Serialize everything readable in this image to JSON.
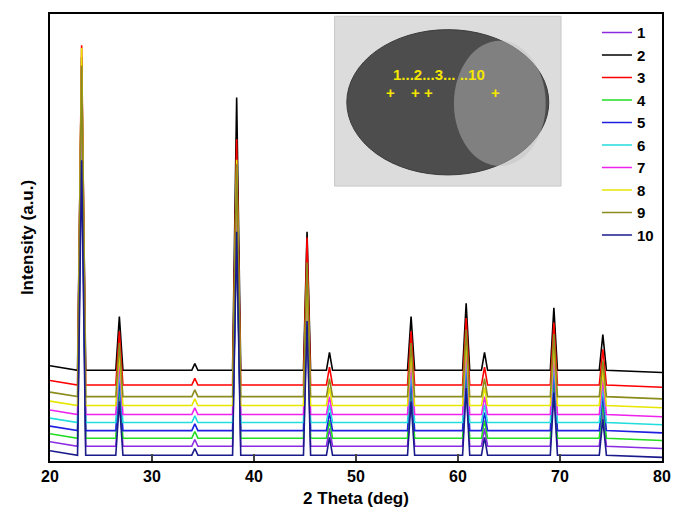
{
  "chart_data": {
    "type": "line",
    "x_label": "2 Theta (deg)",
    "y_label": "Intensity (a.u.)",
    "x": [
      20,
      22.7,
      23.1,
      23.5,
      26.45,
      26.8,
      27.15,
      33.9,
      34.2,
      34.5,
      37.9,
      38.3,
      38.7,
      44.85,
      45.2,
      45.55,
      47.1,
      47.4,
      47.7,
      55.05,
      55.4,
      55.75,
      60.45,
      60.8,
      61.15,
      62.3,
      62.6,
      62.9,
      69.05,
      69.4,
      69.75,
      73.85,
      74.2,
      74.55,
      80
    ],
    "xlim": [
      20,
      80
    ],
    "xticks": [
      20,
      30,
      40,
      50,
      60,
      70,
      80
    ],
    "ylim": [
      0,
      100
    ],
    "tick_labels": "x",
    "grid": false,
    "legend": "top right",
    "annotations": [
      "1...2...3... ..10",
      "+",
      "+",
      "+",
      "+"
    ],
    "series": [
      {
        "name": "1",
        "color": "#8a2be2",
        "values": [
          4.3,
          3.3,
          73.3,
          3.3,
          3.3,
          15.3,
          3.3,
          3.3,
          4.8,
          3.3,
          3.3,
          53.3,
          3.3,
          3.3,
          33.3,
          3.3,
          3.3,
          7.3,
          3.3,
          3.3,
          15.3,
          3.3,
          3.3,
          18.3,
          3.3,
          3.3,
          7.3,
          3.3,
          3.3,
          17.3,
          3.3,
          3.3,
          11.3,
          3.3,
          2.8
        ]
      },
      {
        "name": "2",
        "color": "#000000",
        "values": [
          21.3,
          20.3,
          90.3,
          20.3,
          20.3,
          32.3,
          20.3,
          20.3,
          21.8,
          20.3,
          20.3,
          81.3,
          20.3,
          20.3,
          51.3,
          20.3,
          20.3,
          24.3,
          20.3,
          20.3,
          32.3,
          20.3,
          20.3,
          35.3,
          20.3,
          20.3,
          24.3,
          20.3,
          20.3,
          34.3,
          20.3,
          20.3,
          28.3,
          20.3,
          19.8
        ]
      },
      {
        "name": "3",
        "color": "#ff0000",
        "values": [
          18,
          17,
          93,
          17,
          17,
          29,
          17,
          17,
          18.5,
          17,
          17,
          72,
          17,
          17,
          50,
          17,
          17,
          21,
          17,
          17,
          29,
          17,
          17,
          32,
          17,
          17,
          21,
          17,
          17,
          31,
          17,
          17,
          25,
          17,
          16.5
        ]
      },
      {
        "name": "4",
        "color": "#22dd22",
        "values": [
          6.1,
          5.1,
          77.1,
          5.1,
          5.1,
          17.1,
          5.1,
          5.1,
          6.6,
          5.1,
          5.1,
          53.1,
          5.1,
          5.1,
          35.1,
          5.1,
          5.1,
          9.1,
          5.1,
          5.1,
          17.1,
          5.1,
          5.1,
          20.1,
          5.1,
          5.1,
          9.1,
          5.1,
          5.1,
          19.1,
          5.1,
          5.1,
          13.1,
          5.1,
          4.6
        ]
      },
      {
        "name": "5",
        "color": "#1f1fe0",
        "values": [
          7.8,
          6.8,
          76.8,
          6.8,
          6.8,
          18.8,
          6.8,
          6.8,
          8.3,
          6.8,
          6.8,
          52.8,
          6.8,
          6.8,
          36.8,
          6.8,
          6.8,
          10.8,
          6.8,
          6.8,
          18.8,
          6.8,
          6.8,
          21.8,
          6.8,
          6.8,
          10.8,
          6.8,
          6.8,
          20.8,
          6.8,
          6.8,
          14.8,
          6.8,
          6.3
        ]
      },
      {
        "name": "6",
        "color": "#22dddd",
        "values": [
          9.6,
          8.6,
          80.6,
          8.6,
          8.6,
          20.6,
          8.6,
          8.6,
          10.1,
          8.6,
          8.6,
          56.6,
          8.6,
          8.6,
          38.6,
          8.6,
          8.6,
          12.6,
          8.6,
          8.6,
          20.6,
          8.6,
          8.6,
          23.6,
          8.6,
          8.6,
          12.6,
          8.6,
          8.6,
          22.6,
          8.6,
          8.6,
          16.6,
          8.6,
          8.1
        ]
      },
      {
        "name": "7",
        "color": "#ee22ee",
        "values": [
          11.4,
          10.4,
          86.4,
          10.4,
          10.4,
          22.4,
          10.4,
          10.4,
          11.9,
          10.4,
          10.4,
          62.4,
          10.4,
          10.4,
          40.4,
          10.4,
          10.4,
          14.4,
          10.4,
          10.4,
          22.4,
          10.4,
          10.4,
          25.4,
          10.4,
          10.4,
          14.4,
          10.4,
          10.4,
          24.4,
          10.4,
          10.4,
          18.4,
          10.4,
          9.9
        ]
      },
      {
        "name": "8",
        "color": "#e6e600",
        "values": [
          13.4,
          12.4,
          92.4,
          12.4,
          12.4,
          24.4,
          12.4,
          12.4,
          13.9,
          12.4,
          12.4,
          67.4,
          12.4,
          12.4,
          42.4,
          12.4,
          12.4,
          16.4,
          12.4,
          12.4,
          24.4,
          12.4,
          12.4,
          27.4,
          12.4,
          12.4,
          16.4,
          12.4,
          12.4,
          26.4,
          12.4,
          12.4,
          20.4,
          12.4,
          11.9
        ]
      },
      {
        "name": "9",
        "color": "#8b8b1e",
        "values": [
          15.4,
          14.4,
          88.4,
          14.4,
          14.4,
          26.4,
          14.4,
          14.4,
          15.9,
          14.4,
          14.4,
          66.4,
          14.4,
          14.4,
          44.4,
          14.4,
          14.4,
          18.4,
          14.4,
          14.4,
          26.4,
          14.4,
          14.4,
          29.4,
          14.4,
          14.4,
          18.4,
          14.4,
          14.4,
          28.4,
          14.4,
          14.4,
          22.4,
          14.4,
          13.9
        ]
      },
      {
        "name": "10",
        "color": "#1a1a8c",
        "values": [
          2.3,
          1.3,
          67.3,
          1.3,
          1.3,
          13.3,
          1.3,
          1.3,
          2.8,
          1.3,
          1.3,
          51.3,
          1.3,
          1.3,
          31.3,
          1.3,
          1.3,
          5.3,
          1.3,
          1.3,
          13.3,
          1.3,
          1.3,
          16.3,
          1.3,
          1.3,
          5.3,
          1.3,
          1.3,
          15.3,
          1.3,
          1.3,
          9.3,
          1.3,
          0.8
        ]
      }
    ]
  }
}
